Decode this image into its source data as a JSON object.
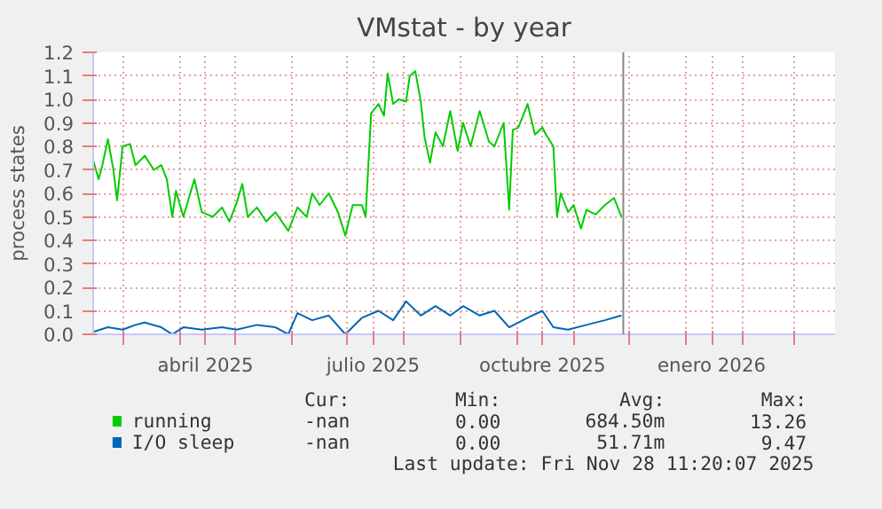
{
  "chart_data": {
    "type": "line",
    "title": "VMstat - by year",
    "ylabel": "process states",
    "xlim": [
      "2025-02-13",
      "2026-03-23"
    ],
    "xticks": [
      {
        "value": "2025-03-01",
        "label": null
      },
      {
        "value": "2025-04-01",
        "label": null
      },
      {
        "value": "2025-04-15",
        "label": "abril 2025"
      },
      {
        "value": "2025-05-01",
        "label": null
      },
      {
        "value": "2025-06-01",
        "label": null
      },
      {
        "value": "2025-07-01",
        "label": null
      },
      {
        "value": "2025-07-15",
        "label": "julio 2025"
      },
      {
        "value": "2025-08-01",
        "label": null
      },
      {
        "value": "2025-09-01",
        "label": null
      },
      {
        "value": "2025-10-01",
        "label": null
      },
      {
        "value": "2025-10-15",
        "label": "octubre 2025"
      },
      {
        "value": "2025-11-01",
        "label": null
      },
      {
        "value": "2025-12-01",
        "label": null
      },
      {
        "value": "2026-01-01",
        "label": null
      },
      {
        "value": "2026-01-15",
        "label": "enero 2026"
      },
      {
        "value": "2026-02-01",
        "label": null
      },
      {
        "value": "2026-03-01",
        "label": null
      }
    ],
    "ylim": [
      0,
      1.2
    ],
    "yticks": [
      {
        "value": 0,
        "label": "0.0"
      },
      0.1,
      0.2,
      0.3,
      0.4,
      0.5,
      0.6,
      0.7,
      0.8,
      0.9,
      {
        "value": 1,
        "label": "1.0"
      },
      1.1,
      1.2
    ],
    "grid": true,
    "legend": "bottom",
    "ref_lines": [
      {
        "axis": "x",
        "value": "2025-11-28",
        "color": "#888888"
      }
    ],
    "series": [
      {
        "name": "running",
        "color": "#00cc00",
        "x": [
          "2025-02-13",
          "2025-02-16",
          "2025-02-18",
          "2025-02-21",
          "2025-02-24",
          "2025-02-26",
          "2025-03-01",
          "2025-03-05",
          "2025-03-08",
          "2025-03-13",
          "2025-03-18",
          "2025-03-22",
          "2025-03-25",
          "2025-03-28",
          "2025-03-30",
          "2025-04-03",
          "2025-04-06",
          "2025-04-09",
          "2025-04-13",
          "2025-04-16",
          "2025-04-19",
          "2025-04-24",
          "2025-04-28",
          "2025-05-02",
          "2025-05-05",
          "2025-05-08",
          "2025-05-13",
          "2025-05-18",
          "2025-05-23",
          "2025-05-30",
          "2025-06-04",
          "2025-06-09",
          "2025-06-12",
          "2025-06-16",
          "2025-06-21",
          "2025-06-26",
          "2025-06-30",
          "2025-07-04",
          "2025-07-09",
          "2025-07-11",
          "2025-07-14",
          "2025-07-18",
          "2025-07-21",
          "2025-07-23",
          "2025-07-26",
          "2025-07-29",
          "2025-08-02",
          "2025-08-04",
          "2025-08-07",
          "2025-08-10",
          "2025-08-12",
          "2025-08-15",
          "2025-08-18",
          "2025-08-22",
          "2025-08-26",
          "2025-08-30",
          "2025-09-02",
          "2025-09-06",
          "2025-09-11",
          "2025-09-16",
          "2025-09-19",
          "2025-09-24",
          "2025-09-27",
          "2025-09-29",
          "2025-10-02",
          "2025-10-07",
          "2025-10-11",
          "2025-10-15",
          "2025-10-17",
          "2025-10-21",
          "2025-10-23",
          "2025-10-25",
          "2025-10-29",
          "2025-11-01",
          "2025-11-05",
          "2025-11-08",
          "2025-11-13",
          "2025-11-18",
          "2025-11-23",
          "2025-11-27"
        ],
        "values": [
          0.74,
          0.66,
          0.72,
          0.83,
          0.7,
          0.57,
          0.8,
          0.81,
          0.72,
          0.76,
          0.7,
          0.72,
          0.66,
          0.5,
          0.61,
          0.5,
          0.58,
          0.66,
          0.52,
          0.51,
          0.5,
          0.54,
          0.48,
          0.56,
          0.64,
          0.5,
          0.54,
          0.48,
          0.52,
          0.44,
          0.54,
          0.5,
          0.6,
          0.55,
          0.6,
          0.52,
          0.42,
          0.55,
          0.55,
          0.5,
          0.94,
          0.98,
          0.93,
          1.11,
          0.98,
          1.0,
          0.99,
          1.1,
          1.12,
          0.99,
          0.84,
          0.73,
          0.86,
          0.8,
          0.95,
          0.78,
          0.9,
          0.8,
          0.95,
          0.82,
          0.8,
          0.9,
          0.53,
          0.87,
          0.88,
          0.98,
          0.85,
          0.88,
          0.85,
          0.8,
          0.5,
          0.6,
          0.52,
          0.55,
          0.45,
          0.53,
          0.51,
          0.55,
          0.58,
          0.5
        ]
      },
      {
        "name": "I/O sleep",
        "color": "#0066b3",
        "x": [
          "2025-02-13",
          "2025-02-21",
          "2025-03-01",
          "2025-03-08",
          "2025-03-13",
          "2025-03-22",
          "2025-03-28",
          "2025-04-03",
          "2025-04-13",
          "2025-04-24",
          "2025-05-02",
          "2025-05-13",
          "2025-05-23",
          "2025-05-30",
          "2025-06-04",
          "2025-06-12",
          "2025-06-21",
          "2025-06-30",
          "2025-07-09",
          "2025-07-18",
          "2025-07-26",
          "2025-08-02",
          "2025-08-10",
          "2025-08-18",
          "2025-08-26",
          "2025-09-02",
          "2025-09-11",
          "2025-09-19",
          "2025-09-27",
          "2025-10-07",
          "2025-10-15",
          "2025-10-21",
          "2025-10-29",
          "2025-11-08",
          "2025-11-18",
          "2025-11-27"
        ],
        "values": [
          0.01,
          0.03,
          0.02,
          0.04,
          0.05,
          0.03,
          0.0,
          0.03,
          0.02,
          0.03,
          0.02,
          0.04,
          0.03,
          0.0,
          0.09,
          0.06,
          0.08,
          0.0,
          0.07,
          0.1,
          0.06,
          0.14,
          0.08,
          0.12,
          0.08,
          0.12,
          0.08,
          0.1,
          0.03,
          0.07,
          0.1,
          0.03,
          0.02,
          0.04,
          0.06,
          0.08
        ]
      }
    ],
    "annotations": [
      "Cur:",
      "Min:",
      "Avg:",
      "Max:",
      "-nan",
      "0.00",
      "684.50m",
      "13.26",
      "-nan",
      "0.00",
      "51.71m",
      "9.47",
      "Last update: Fri Nov 28 11:20:07 2025"
    ]
  }
}
